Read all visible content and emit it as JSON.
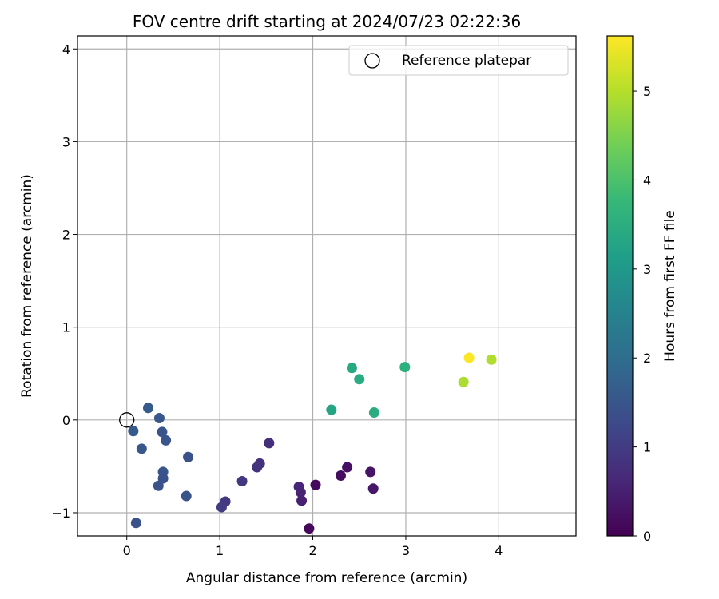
{
  "chart_data": {
    "type": "scatter",
    "title": "FOV centre drift starting at 2024/07/23 02:22:36",
    "xlabel": "Angular distance from reference (arcmin)",
    "ylabel": "Rotation from reference (arcmin)",
    "xlim": [
      -0.53,
      4.83
    ],
    "ylim": [
      -1.25,
      4.14
    ],
    "xticks": [
      0,
      1,
      2,
      3,
      4
    ],
    "yticks": [
      -1,
      0,
      1,
      2,
      3,
      4
    ],
    "grid": true,
    "legend": {
      "placement": "top-right",
      "entries": [
        "Reference platepar"
      ]
    },
    "reference_point": {
      "x": 0,
      "y": 0
    },
    "colorbar": {
      "label": "Hours from first FF file",
      "range": [
        0,
        5.62
      ],
      "ticks": [
        0,
        1,
        2,
        3,
        4,
        5
      ],
      "colormap": "viridis",
      "colormap_colors": [
        "#440154",
        "#482878",
        "#3e4989",
        "#31688e",
        "#26828e",
        "#1f9e89",
        "#35b779",
        "#6ece58",
        "#b5de2b",
        "#fde725"
      ]
    },
    "points": [
      {
        "x": 1.96,
        "y": -1.17,
        "hours": 0.1
      },
      {
        "x": 2.03,
        "y": -0.7,
        "hours": 0.15
      },
      {
        "x": 2.3,
        "y": -0.6,
        "hours": 0.2
      },
      {
        "x": 2.37,
        "y": -0.51,
        "hours": 0.25
      },
      {
        "x": 2.62,
        "y": -0.56,
        "hours": 0.3
      },
      {
        "x": 2.65,
        "y": -0.74,
        "hours": 0.35
      },
      {
        "x": 1.88,
        "y": -0.87,
        "hours": 0.5
      },
      {
        "x": 1.87,
        "y": -0.78,
        "hours": 0.55
      },
      {
        "x": 1.85,
        "y": -0.72,
        "hours": 0.6
      },
      {
        "x": 1.53,
        "y": -0.25,
        "hours": 0.75
      },
      {
        "x": 1.43,
        "y": -0.47,
        "hours": 0.8
      },
      {
        "x": 1.4,
        "y": -0.51,
        "hours": 0.85
      },
      {
        "x": 1.24,
        "y": -0.66,
        "hours": 0.9
      },
      {
        "x": 1.06,
        "y": -0.88,
        "hours": 0.95
      },
      {
        "x": 1.02,
        "y": -0.94,
        "hours": 1.0
      },
      {
        "x": 0.66,
        "y": -0.4,
        "hours": 1.4
      },
      {
        "x": 0.64,
        "y": -0.82,
        "hours": 1.45
      },
      {
        "x": 0.42,
        "y": -0.22,
        "hours": 1.5
      },
      {
        "x": 0.38,
        "y": -0.13,
        "hours": 1.5
      },
      {
        "x": 0.35,
        "y": 0.02,
        "hours": 1.55
      },
      {
        "x": 0.23,
        "y": 0.13,
        "hours": 1.6
      },
      {
        "x": 0.07,
        "y": -0.12,
        "hours": 1.6
      },
      {
        "x": 0.16,
        "y": -0.31,
        "hours": 1.55
      },
      {
        "x": 0.39,
        "y": -0.56,
        "hours": 1.5
      },
      {
        "x": 0.39,
        "y": -0.63,
        "hours": 1.45
      },
      {
        "x": 0.34,
        "y": -0.71,
        "hours": 1.45
      },
      {
        "x": 0.1,
        "y": -1.11,
        "hours": 1.4
      },
      {
        "x": 2.2,
        "y": 0.11,
        "hours": 3.3
      },
      {
        "x": 2.42,
        "y": 0.56,
        "hours": 3.4
      },
      {
        "x": 2.5,
        "y": 0.44,
        "hours": 3.45
      },
      {
        "x": 2.66,
        "y": 0.08,
        "hours": 3.5
      },
      {
        "x": 2.99,
        "y": 0.57,
        "hours": 3.55
      },
      {
        "x": 3.62,
        "y": 0.41,
        "hours": 4.9
      },
      {
        "x": 3.92,
        "y": 0.65,
        "hours": 4.95
      },
      {
        "x": 3.68,
        "y": 0.67,
        "hours": 5.6
      }
    ]
  }
}
